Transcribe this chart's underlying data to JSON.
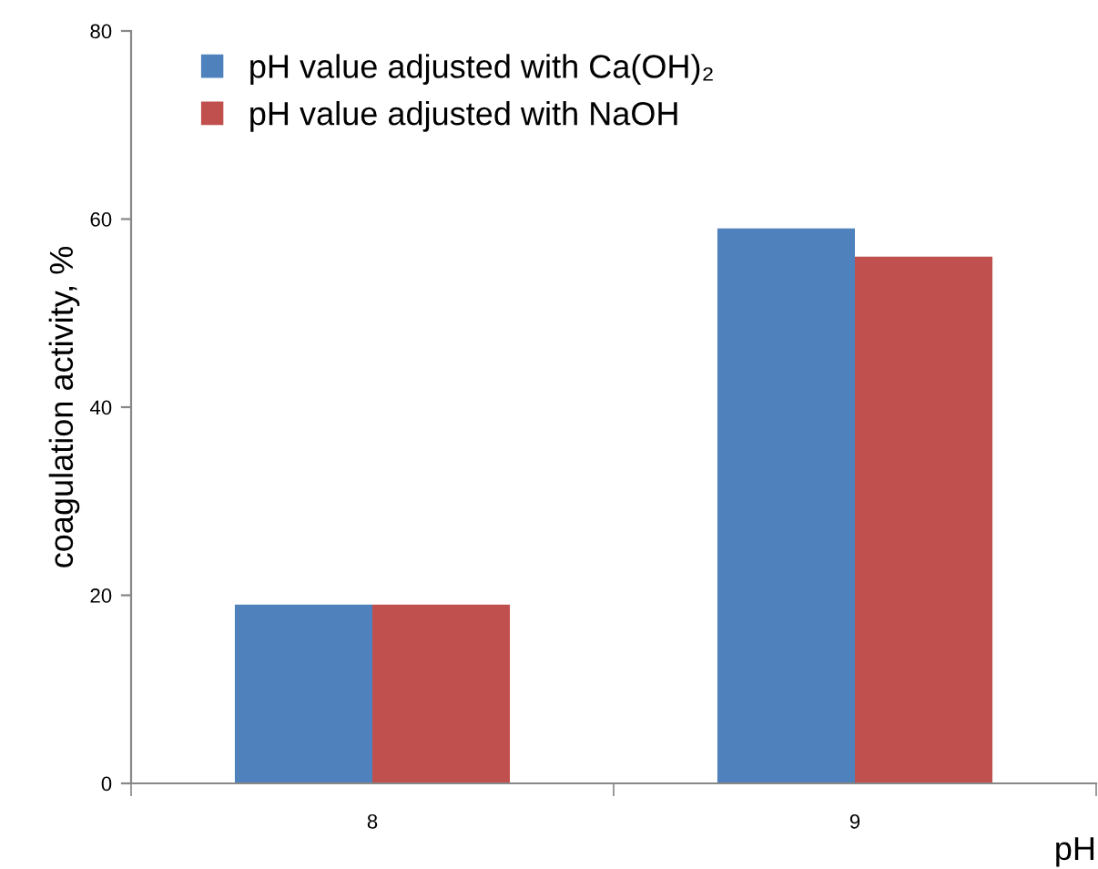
{
  "chart_data": {
    "type": "bar",
    "xlabel": "pH",
    "ylabel": "coagulation activity, %",
    "categories": [
      "8",
      "9"
    ],
    "series": [
      {
        "name": "pH value adjusted with Ca(OH)₂",
        "color": "#4f81bd",
        "values": [
          19,
          59
        ]
      },
      {
        "name": "pH value adjusted with NaOH",
        "color": "#c0504d",
        "values": [
          19,
          56
        ]
      }
    ],
    "ylim": [
      0,
      80
    ],
    "yticks": [
      0,
      20,
      40,
      60,
      80
    ],
    "grid": false,
    "legend": "top left"
  }
}
